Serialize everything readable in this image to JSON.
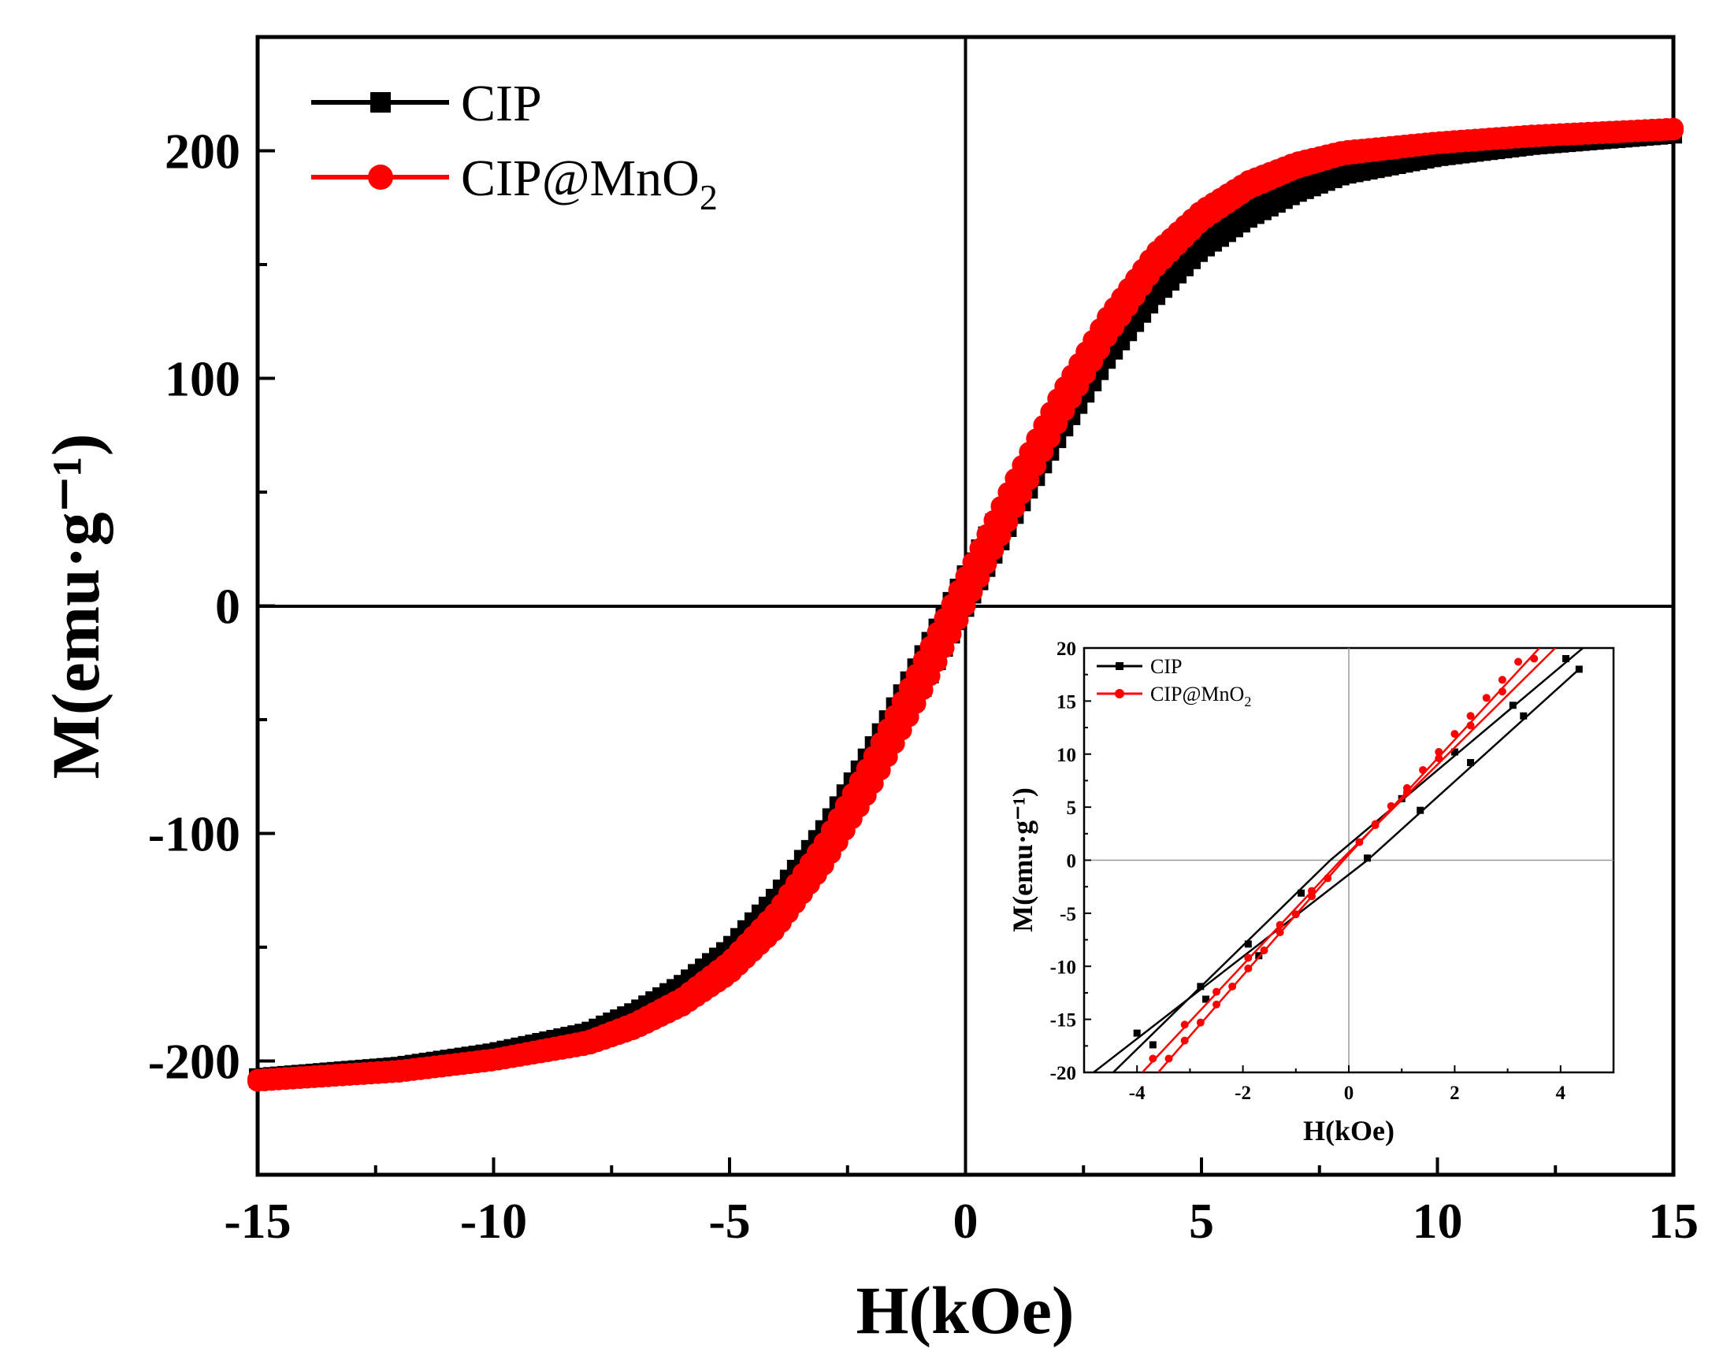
{
  "chart_data": [
    {
      "id": "main",
      "type": "line",
      "title": "",
      "xlabel": "H(kOe)",
      "ylabel": "M(emu·g⁻¹)",
      "xlim": [
        -15,
        15
      ],
      "ylim": [
        -250,
        250
      ],
      "xticks": [
        -15,
        -10,
        -5,
        0,
        5,
        10,
        15
      ],
      "xtick_labels": [
        "-15",
        "-10",
        "-5",
        "0",
        "5",
        "10",
        "15"
      ],
      "yticks": [
        -200,
        -100,
        0,
        100,
        200
      ],
      "ytick_labels": [
        "-200",
        "-100",
        "0",
        "100",
        "200"
      ],
      "legend_position": "top-left",
      "series": [
        {
          "name": "CIP",
          "color": "#000000",
          "marker": "square",
          "ascending": [
            [
              -15,
              -208
            ],
            [
              -12,
              -203
            ],
            [
              -10,
              -196
            ],
            [
              -8,
              -188
            ],
            [
              -7,
              -181
            ],
            [
              -6,
              -170
            ],
            [
              -5,
              -156
            ],
            [
              -4,
              -136
            ],
            [
              -3,
              -109
            ],
            [
              -2,
              -77
            ],
            [
              -1,
              -40
            ],
            [
              0,
              -1
            ],
            [
              1,
              38
            ],
            [
              2,
              75
            ],
            [
              3,
              108
            ],
            [
              4,
              135
            ],
            [
              5,
              156
            ],
            [
              6,
              170
            ],
            [
              7,
              181
            ],
            [
              8,
              189
            ],
            [
              10,
              197
            ],
            [
              12,
              202
            ],
            [
              15,
              207
            ]
          ],
          "descending": [
            [
              15,
              208
            ],
            [
              12,
              203
            ],
            [
              10,
              198
            ],
            [
              8,
              191
            ],
            [
              7,
              185
            ],
            [
              6,
              176
            ],
            [
              5,
              163
            ],
            [
              4,
              144
            ],
            [
              3,
              119
            ],
            [
              2,
              88
            ],
            [
              1,
              52
            ],
            [
              0,
              14
            ],
            [
              -1,
              -25
            ],
            [
              -2,
              -63
            ],
            [
              -3,
              -98
            ],
            [
              -4,
              -127
            ],
            [
              -5,
              -150
            ],
            [
              -6,
              -166
            ],
            [
              -7,
              -178
            ],
            [
              -8,
              -187
            ],
            [
              -10,
              -196
            ],
            [
              -12,
              -202
            ],
            [
              -15,
              -207
            ]
          ]
        },
        {
          "name": "CIP@MnO",
          "name_subscript": "2",
          "color": "#ff0000",
          "marker": "circle",
          "ascending": [
            [
              -15,
              -209
            ],
            [
              -12,
              -205
            ],
            [
              -10,
              -200
            ],
            [
              -8,
              -193
            ],
            [
              -7,
              -186
            ],
            [
              -6,
              -176
            ],
            [
              -5,
              -162
            ],
            [
              -4,
              -142
            ],
            [
              -3,
              -114
            ],
            [
              -2,
              -80
            ],
            [
              -1,
              -41
            ],
            [
              0,
              0
            ],
            [
              1,
              41
            ],
            [
              2,
              82
            ],
            [
              3,
              118
            ],
            [
              4,
              148
            ],
            [
              5,
              169
            ],
            [
              6,
              183
            ],
            [
              7,
              192
            ],
            [
              8,
              198
            ],
            [
              10,
              203
            ],
            [
              12,
              206
            ],
            [
              15,
              209
            ]
          ],
          "descending": [
            [
              15,
              210
            ],
            [
              12,
              207
            ],
            [
              10,
              204
            ],
            [
              8,
              200
            ],
            [
              7,
              195
            ],
            [
              6,
              187
            ],
            [
              5,
              174
            ],
            [
              4,
              155
            ],
            [
              3,
              127
            ],
            [
              2,
              93
            ],
            [
              1,
              54
            ],
            [
              0,
              13
            ],
            [
              -1,
              -28
            ],
            [
              -2,
              -68
            ],
            [
              -3,
              -104
            ],
            [
              -4,
              -134
            ],
            [
              -5,
              -156
            ],
            [
              -6,
              -172
            ],
            [
              -7,
              -183
            ],
            [
              -8,
              -191
            ],
            [
              -10,
              -199
            ],
            [
              -12,
              -204
            ],
            [
              -15,
              -208
            ]
          ]
        }
      ]
    },
    {
      "id": "inset",
      "type": "line",
      "title": "",
      "xlabel": "H(kOe)",
      "ylabel": "M(emu·g⁻¹)",
      "xlim": [
        -5,
        5
      ],
      "ylim": [
        -20,
        20
      ],
      "xticks": [
        -4,
        -2,
        0,
        2,
        4
      ],
      "xtick_labels": [
        "-4",
        "-2",
        "0",
        "2",
        "4"
      ],
      "yticks": [
        -20,
        -15,
        -10,
        -5,
        0,
        5,
        10,
        15,
        20
      ],
      "ytick_labels": [
        "-20",
        "-15",
        "-10",
        "-5",
        "0",
        "5",
        "10",
        "15",
        "20"
      ],
      "legend_position": "top-left",
      "series": [
        {
          "name": "CIP",
          "color": "#000000",
          "marker": "square",
          "lines": [
            {
              "label": "ascending",
              "points": [
                [
                  -4.82,
                  -20
                ],
                [
                  0.35,
                  0
                ],
                [
                  4.35,
                  18
                ]
              ]
            },
            {
              "label": "descending",
              "points": [
                [
                  -4.45,
                  -20
                ],
                [
                  -0.35,
                  0
                ],
                [
                  4.9,
                  22
                ]
              ]
            }
          ],
          "markers": [
            [
              -4.0,
              -16.3
            ],
            [
              -2.8,
              -11.9
            ],
            [
              -1.9,
              -7.9
            ],
            [
              -0.9,
              -3.1
            ],
            [
              0.35,
              0.2
            ],
            [
              1.35,
              4.7
            ],
            [
              2.3,
              9.2
            ],
            [
              3.3,
              13.6
            ],
            [
              4.35,
              18
            ],
            [
              -3.7,
              -17.4
            ],
            [
              -2.7,
              -13.1
            ],
            [
              -1.7,
              -9
            ],
            [
              1.0,
              5.8
            ],
            [
              2.0,
              10.2
            ],
            [
              3.1,
              14.6
            ],
            [
              4.1,
              19
            ]
          ]
        },
        {
          "name": "CIP@MnO",
          "name_subscript": "2",
          "color": "#ff0000",
          "marker": "circle",
          "lines": [
            {
              "label": "ascending",
              "points": [
                [
                  -3.6,
                  -20
                ],
                [
                  -0.1,
                  0
                ],
                [
                  3.6,
                  20
                ]
              ]
            },
            {
              "label": "descending",
              "points": [
                [
                  -3.9,
                  -20
                ],
                [
                  -0.15,
                  0
                ],
                [
                  3.9,
                  20
                ]
              ]
            }
          ],
          "markers": [
            [
              -3.4,
              -18.7
            ],
            [
              -3.1,
              -17
            ],
            [
              -2.8,
              -15.3
            ],
            [
              -2.5,
              -13.6
            ],
            [
              -2.2,
              -11.9
            ],
            [
              -1.9,
              -10.2
            ],
            [
              -1.6,
              -8.5
            ],
            [
              -1.3,
              -6.8
            ],
            [
              -1.0,
              -5.1
            ],
            [
              -0.7,
              -3.4
            ],
            [
              -0.4,
              -1.7
            ],
            [
              0.2,
              1.7
            ],
            [
              0.5,
              3.4
            ],
            [
              0.8,
              5.1
            ],
            [
              1.1,
              6.8
            ],
            [
              1.4,
              8.5
            ],
            [
              1.7,
              10.2
            ],
            [
              2.0,
              11.9
            ],
            [
              2.3,
              13.6
            ],
            [
              2.6,
              15.3
            ],
            [
              2.9,
              17
            ],
            [
              3.2,
              18.7
            ],
            [
              -3.7,
              -18.7
            ],
            [
              -3.1,
              -15.5
            ],
            [
              -2.5,
              -12.4
            ],
            [
              -1.9,
              -9.2
            ],
            [
              -1.3,
              -6.1
            ],
            [
              -0.7,
              -2.9
            ],
            [
              0.5,
              3.3
            ],
            [
              1.1,
              6.4
            ],
            [
              1.7,
              9.6
            ],
            [
              2.3,
              12.7
            ],
            [
              2.9,
              15.9
            ],
            [
              3.5,
              19
            ]
          ]
        }
      ]
    }
  ]
}
